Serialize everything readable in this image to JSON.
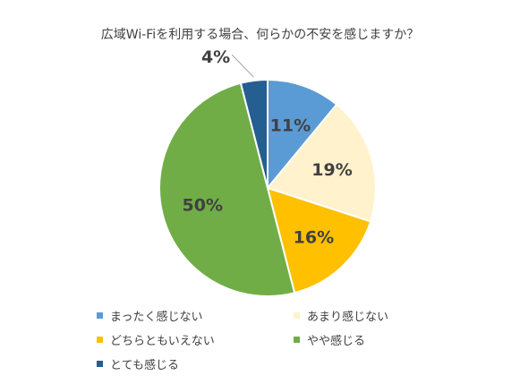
{
  "chart_data": {
    "type": "pie",
    "title": "広域Wi-Fiを利用する場合、何らかの不安を感じますか？",
    "slices": [
      {
        "label": "まったく感じない",
        "value": 11,
        "display": "11%",
        "color": "#5b9bd5"
      },
      {
        "label": "あまり感じない",
        "value": 19,
        "display": "19%",
        "color": "#fff2cc"
      },
      {
        "label": "どちらともいえない",
        "value": 16,
        "display": "16%",
        "color": "#ffc000"
      },
      {
        "label": "やや感じる",
        "value": 50,
        "display": "50%",
        "color": "#70ad47"
      },
      {
        "label": "とても感じる",
        "value": 4,
        "display": "4%",
        "color": "#255e91"
      }
    ],
    "legend_position": "bottom"
  }
}
